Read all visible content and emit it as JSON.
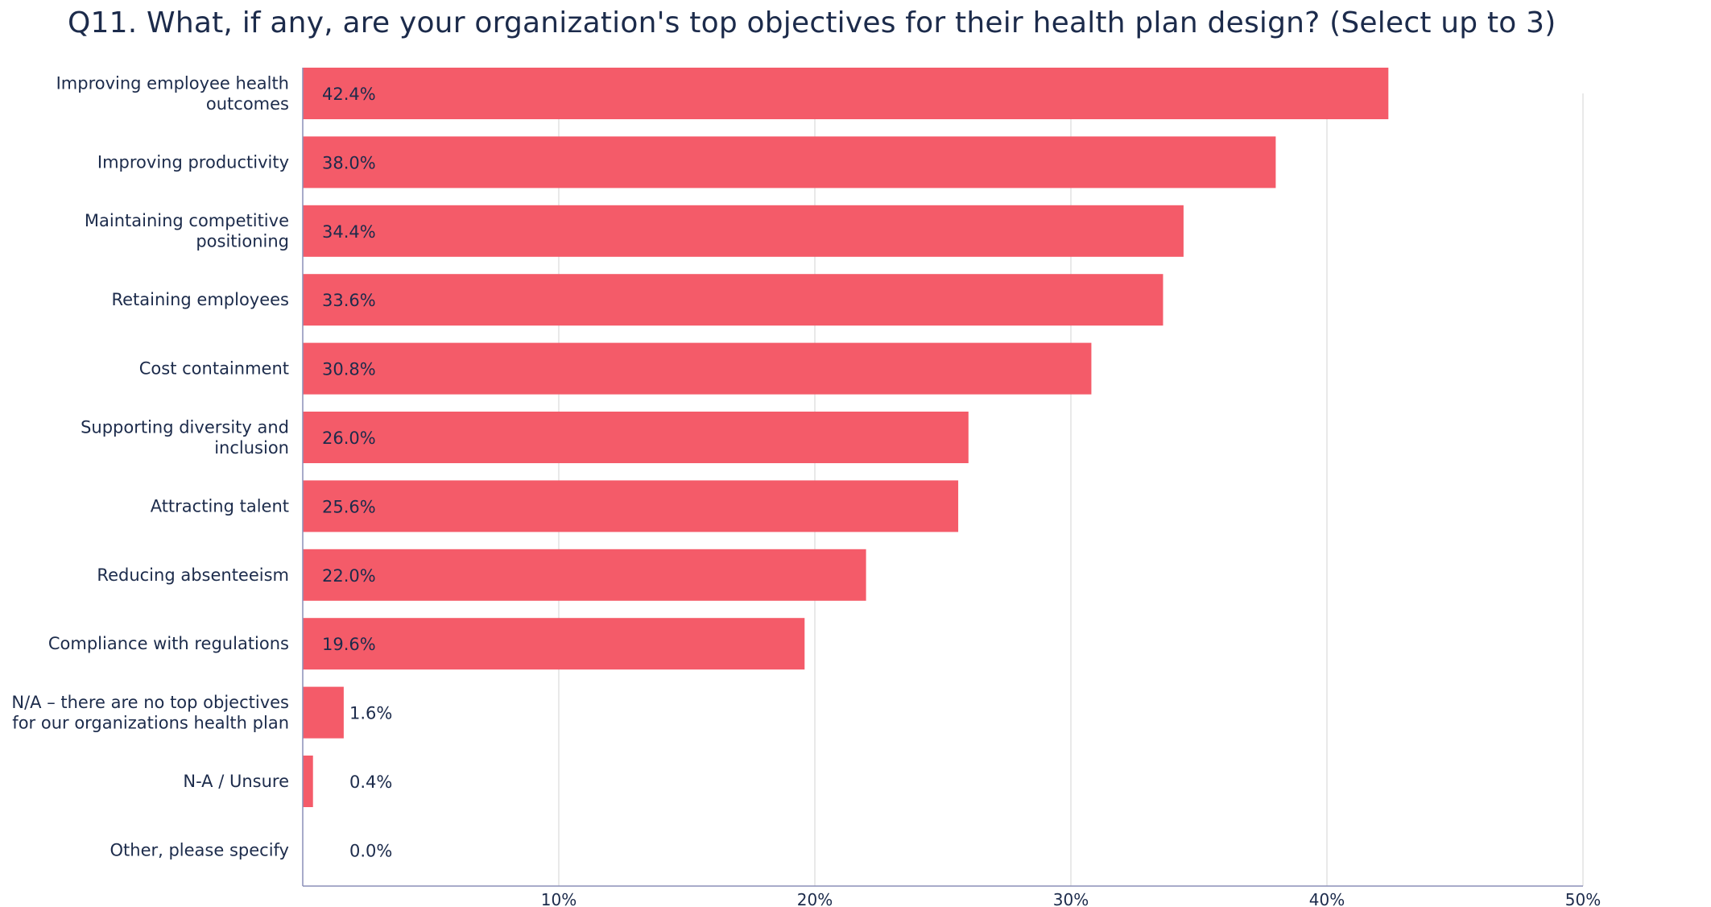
{
  "chart_data": {
    "type": "bar",
    "orientation": "horizontal",
    "title": "Q11. What, if any, are your organization's top objectives for their health plan design? (Select up to 3)",
    "categories": [
      "Improving employee health outcomes",
      "Improving productivity",
      "Maintaining competitive positioning",
      "Retaining employees",
      "Cost containment",
      "Supporting diversity and inclusion",
      "Attracting talent",
      "Reducing absenteeism",
      "Compliance with regulations",
      "N/A – there are no top objectives for our organizations health plan",
      "N-A / Unsure",
      "Other, please specify"
    ],
    "category_lines": [
      [
        "Improving employee health",
        "outcomes"
      ],
      [
        "Improving productivity"
      ],
      [
        "Maintaining competitive",
        "positioning"
      ],
      [
        "Retaining employees"
      ],
      [
        "Cost containment"
      ],
      [
        "Supporting diversity and",
        "inclusion"
      ],
      [
        "Attracting talent"
      ],
      [
        "Reducing absenteeism"
      ],
      [
        "Compliance with regulations"
      ],
      [
        "N/A – there are no top objectives",
        "for our organizations health plan"
      ],
      [
        "N-A / Unsure"
      ],
      [
        "Other, please specify"
      ]
    ],
    "values": [
      42.4,
      38.0,
      34.4,
      33.6,
      30.8,
      26.0,
      25.6,
      22.0,
      19.6,
      1.6,
      0.4,
      0.0
    ],
    "value_labels": [
      "42.4%",
      "38.0%",
      "34.4%",
      "33.6%",
      "30.8%",
      "26.0%",
      "25.6%",
      "22.0%",
      "19.6%",
      "1.6%",
      "0.4%",
      "0.0%"
    ],
    "xlim": [
      0,
      50
    ],
    "ticks": [
      10,
      20,
      30,
      40,
      50
    ],
    "tick_labels": [
      "10%",
      "20%",
      "30%",
      "40%",
      "50%"
    ],
    "grid": true,
    "legend": "none",
    "bar_color": "#f45b69",
    "text_color": "#1c2b4b",
    "axis_color": "#8c8fb8",
    "grid_color": "#e2e2e2"
  }
}
